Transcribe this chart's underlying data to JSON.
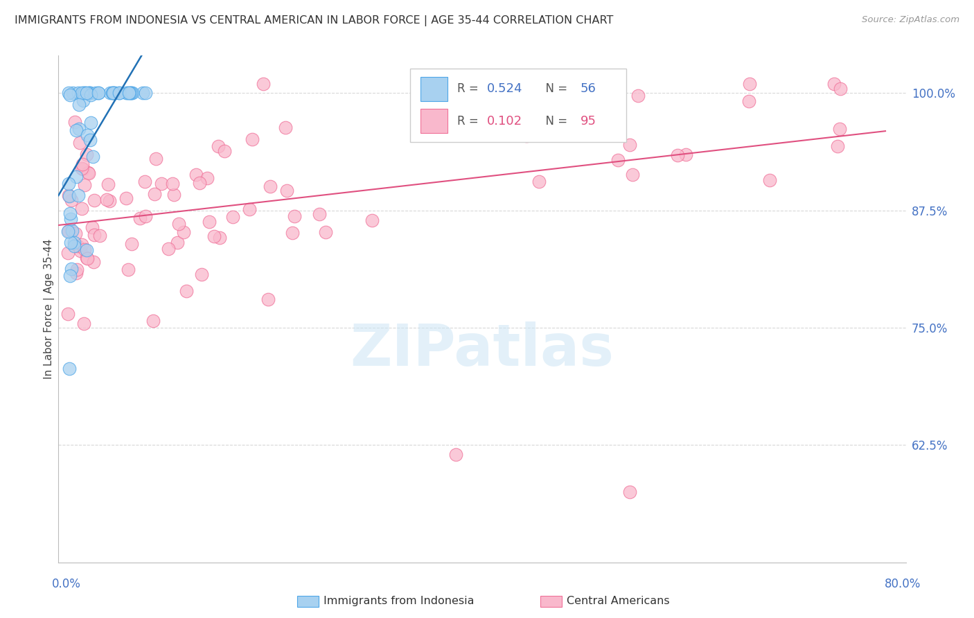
{
  "title": "IMMIGRANTS FROM INDONESIA VS CENTRAL AMERICAN IN LABOR FORCE | AGE 35-44 CORRELATION CHART",
  "source": "Source: ZipAtlas.com",
  "ylabel": "In Labor Force | Age 35-44",
  "legend_blue_r": "0.524",
  "legend_blue_n": "56",
  "legend_pink_r": "0.102",
  "legend_pink_n": "95",
  "blue_fill": "#a8d1f0",
  "blue_edge": "#4da6e8",
  "blue_line": "#2171b5",
  "pink_fill": "#f9b8cc",
  "pink_edge": "#f07098",
  "pink_line": "#e05080",
  "label_color": "#4472c4",
  "pink_label_color": "#e05080",
  "title_color": "#333333",
  "source_color": "#999999",
  "grid_color": "#d8d8d8",
  "watermark_color": "#cce5f5",
  "watermark": "ZIPatlas",
  "ytick_values": [
    1.0,
    0.875,
    0.75,
    0.625
  ],
  "ytick_labels": [
    "100.0%",
    "87.5%",
    "75.0%",
    "62.5%"
  ],
  "xlim": [
    -0.008,
    0.82
  ],
  "ylim": [
    0.5,
    1.04
  ]
}
